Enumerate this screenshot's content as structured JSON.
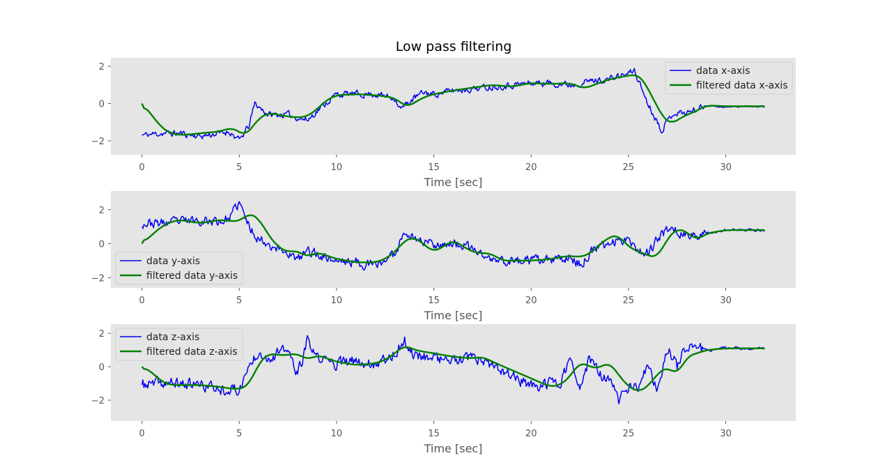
{
  "figure": {
    "title": "Low pass filtering"
  },
  "colors": {
    "raw": "#0000ee",
    "filtered": "#008000",
    "panel_bg": "#e5e5e5",
    "tick_text": "#555555"
  },
  "chart_data": [
    {
      "type": "line",
      "xlabel": "Time [sec]",
      "xlim": [
        -1.6,
        33.6
      ],
      "ylim": [
        -2.75,
        2.45
      ],
      "xticks": [
        0,
        5,
        10,
        15,
        20,
        25,
        30
      ],
      "yticks": [
        -2,
        0,
        2
      ],
      "grid": false,
      "legend_position": "top-right",
      "series": [
        {
          "name": "data x-axis",
          "color": "#0000ee",
          "style": "noisy",
          "noise_amplitude": 0.28,
          "seed": 11,
          "x": [
            0,
            1,
            2,
            3,
            4,
            4.5,
            5,
            5.5,
            5.8,
            6.5,
            7.5,
            8.5,
            9.2,
            10,
            11,
            12,
            13,
            13.3,
            14,
            14.5,
            15,
            16,
            17,
            18,
            19,
            20,
            21,
            22,
            23,
            24,
            25,
            25.3,
            26,
            26.7,
            27.3,
            28,
            29,
            30,
            31,
            32
          ],
          "y": [
            -1.7,
            -1.6,
            -1.6,
            -1.75,
            -1.6,
            -1.5,
            -2.0,
            -1.2,
            0.0,
            -0.6,
            -0.6,
            -0.9,
            -0.2,
            0.5,
            0.5,
            0.5,
            0.3,
            -0.3,
            0.3,
            0.6,
            0.5,
            0.7,
            0.8,
            0.9,
            1.0,
            1.1,
            1.1,
            1.0,
            1.2,
            1.3,
            1.6,
            1.8,
            0.0,
            -1.4,
            -0.5,
            -0.5,
            -0.1,
            -0.2,
            -0.15,
            -0.15
          ]
        },
        {
          "name": "filtered data x-axis",
          "color": "#008000",
          "style": "smooth",
          "x": [
            0,
            0.5,
            1,
            1.5,
            2,
            3,
            4,
            4.6,
            5,
            5.3,
            5.5,
            6,
            6.5,
            7,
            7.5,
            8,
            8.5,
            9,
            9.5,
            10,
            11,
            12,
            13,
            13.6,
            14.5,
            15,
            16,
            17,
            18,
            19,
            20,
            21,
            22,
            22.7,
            23.5,
            24,
            24.5,
            25,
            25.5,
            25.8,
            26.2,
            26.8,
            27.2,
            27.8,
            28.5,
            29,
            30,
            31,
            32
          ],
          "y": [
            0,
            -0.6,
            -1.3,
            -1.6,
            -1.7,
            -1.6,
            -1.5,
            -1.3,
            -1.5,
            -1.75,
            -1.5,
            -0.8,
            -0.5,
            -0.6,
            -0.7,
            -0.75,
            -0.7,
            -0.3,
            0.2,
            0.45,
            0.5,
            0.45,
            0.3,
            -0.2,
            0.35,
            0.5,
            0.7,
            0.85,
            1.0,
            0.9,
            1.1,
            1.05,
            1.1,
            0.8,
            1.1,
            1.3,
            1.4,
            1.5,
            1.55,
            1.2,
            0.4,
            -0.8,
            -1.1,
            -0.7,
            -0.4,
            -0.1,
            -0.15,
            -0.15,
            -0.15
          ]
        }
      ]
    },
    {
      "type": "line",
      "xlabel": "Time [sec]",
      "xlim": [
        -1.6,
        33.6
      ],
      "ylim": [
        -2.6,
        3.1
      ],
      "xticks": [
        0,
        5,
        10,
        15,
        20,
        25,
        30
      ],
      "yticks": [
        -2,
        0,
        2
      ],
      "grid": false,
      "legend_position": "bottom-left",
      "series": [
        {
          "name": "data y-axis",
          "color": "#0000ee",
          "style": "noisy",
          "noise_amplitude": 0.45,
          "seed": 23,
          "x": [
            0,
            1,
            2,
            3,
            4,
            4.5,
            5,
            5.5,
            6,
            7,
            7.5,
            8,
            8.5,
            9,
            10,
            11,
            12,
            13,
            13.5,
            14,
            15,
            16,
            17,
            18,
            19,
            20,
            21,
            22,
            22.6,
            23,
            24,
            25,
            25.5,
            26,
            27,
            27.5,
            28,
            29,
            30,
            31,
            32
          ],
          "y": [
            1.2,
            1.2,
            1.3,
            1.4,
            1.3,
            1.5,
            2.4,
            1.0,
            0.3,
            -0.3,
            -0.5,
            -1.0,
            -0.4,
            -0.6,
            -1.0,
            -1.1,
            -1.3,
            -0.6,
            0.8,
            0.3,
            0.0,
            0.0,
            -0.3,
            -1.0,
            -1.0,
            -1.0,
            -1.0,
            -0.8,
            -1.3,
            -0.5,
            0.0,
            0.4,
            -0.4,
            -0.5,
            0.9,
            0.8,
            0.4,
            0.6,
            0.8,
            0.8,
            0.8
          ]
        },
        {
          "name": "filtered data y-axis",
          "color": "#008000",
          "style": "smooth",
          "x": [
            0,
            0.5,
            1,
            1.5,
            2,
            3,
            4,
            4.5,
            5,
            5.5,
            6,
            6.5,
            7,
            7.5,
            8,
            8.5,
            9,
            10,
            11,
            12,
            12.5,
            13,
            13.5,
            14,
            15,
            16,
            17,
            18,
            18.5,
            19,
            20,
            21,
            22,
            22.5,
            23,
            24,
            24.5,
            25,
            26,
            26.5,
            27,
            27.5,
            28,
            28.5,
            29,
            30,
            31,
            32
          ],
          "y": [
            0,
            0.5,
            1.0,
            1.3,
            1.4,
            1.2,
            1.4,
            1.35,
            1.3,
            1.8,
            1.5,
            0.5,
            -0.2,
            -0.5,
            -0.4,
            -0.8,
            -0.5,
            -0.9,
            -1.1,
            -1.1,
            -0.9,
            -0.5,
            0.2,
            0.4,
            -0.5,
            0.2,
            -0.5,
            -0.6,
            -1.0,
            -1.0,
            -1.0,
            -0.9,
            -0.7,
            -0.8,
            -0.6,
            0.4,
            0.5,
            -0.2,
            -0.7,
            -0.8,
            0.3,
            0.9,
            0.7,
            0.2,
            0.6,
            0.8,
            0.8,
            0.8
          ]
        }
      ]
    },
    {
      "type": "line",
      "xlabel": "Time [sec]",
      "xlim": [
        -1.6,
        33.6
      ],
      "ylim": [
        -3.25,
        2.55
      ],
      "xticks": [
        0,
        5,
        10,
        15,
        20,
        25,
        30
      ],
      "yticks": [
        -2,
        0,
        2
      ],
      "grid": false,
      "legend_position": "top-left",
      "series": [
        {
          "name": "data z-axis",
          "color": "#0000ee",
          "style": "noisy",
          "noise_amplitude": 0.55,
          "seed": 37,
          "x": [
            0,
            1,
            2,
            3,
            4,
            5,
            5.5,
            6,
            6.5,
            7,
            7.5,
            8,
            8.5,
            9,
            10,
            11,
            12,
            12.5,
            13,
            13.5,
            14,
            15,
            16,
            17,
            18,
            19,
            20,
            21,
            21.5,
            22,
            22.5,
            23,
            23.5,
            24,
            24.5,
            25,
            25.5,
            26,
            26.5,
            27,
            27.5,
            28,
            28.5,
            29,
            30,
            31,
            32
          ],
          "y": [
            -1.1,
            -1.0,
            -1.0,
            -1.1,
            -1.3,
            -1.4,
            0.0,
            1.0,
            0.5,
            0.8,
            1.0,
            -0.5,
            1.5,
            0.5,
            0.2,
            0.3,
            0.2,
            0.5,
            0.8,
            1.5,
            0.7,
            0.6,
            0.3,
            0.5,
            0.0,
            -0.5,
            -1.2,
            -1.0,
            -0.8,
            0.4,
            -1.5,
            0.6,
            -0.5,
            -0.8,
            -2.0,
            -1.2,
            -1.3,
            0.0,
            -1.5,
            1.2,
            0.0,
            1.4,
            1.0,
            1.0,
            1.1,
            1.1,
            1.1
          ]
        },
        {
          "name": "filtered data z-axis",
          "color": "#008000",
          "style": "smooth",
          "x": [
            0,
            0.5,
            1,
            1.5,
            2,
            3,
            4,
            4.5,
            5,
            5.5,
            6,
            6.5,
            7,
            7.5,
            8,
            8.5,
            9,
            10,
            11,
            12,
            12.5,
            13,
            13.5,
            14,
            15,
            16,
            17,
            17.5,
            18,
            19,
            20,
            21,
            21.5,
            22,
            22.5,
            23,
            23.5,
            24,
            24.5,
            25,
            25.5,
            26,
            26.5,
            27,
            27.5,
            28,
            29,
            30,
            31,
            32
          ],
          "y": [
            0,
            -0.3,
            -0.9,
            -1.1,
            -1.1,
            -1.1,
            -1.2,
            -1.3,
            -1.35,
            -1.1,
            0.2,
            0.8,
            0.7,
            0.7,
            0.8,
            0.4,
            0.7,
            0.3,
            0.1,
            0.2,
            0.4,
            0.8,
            1.3,
            1.0,
            0.8,
            0.6,
            0.5,
            0.6,
            0.3,
            -0.2,
            -0.7,
            -1.2,
            -1.1,
            -0.6,
            0.3,
            0.0,
            -0.1,
            0.3,
            -0.5,
            -1.2,
            -1.5,
            -1.2,
            -0.4,
            0.0,
            -0.5,
            0.6,
            1.0,
            1.1,
            1.1,
            1.1
          ]
        }
      ]
    }
  ]
}
